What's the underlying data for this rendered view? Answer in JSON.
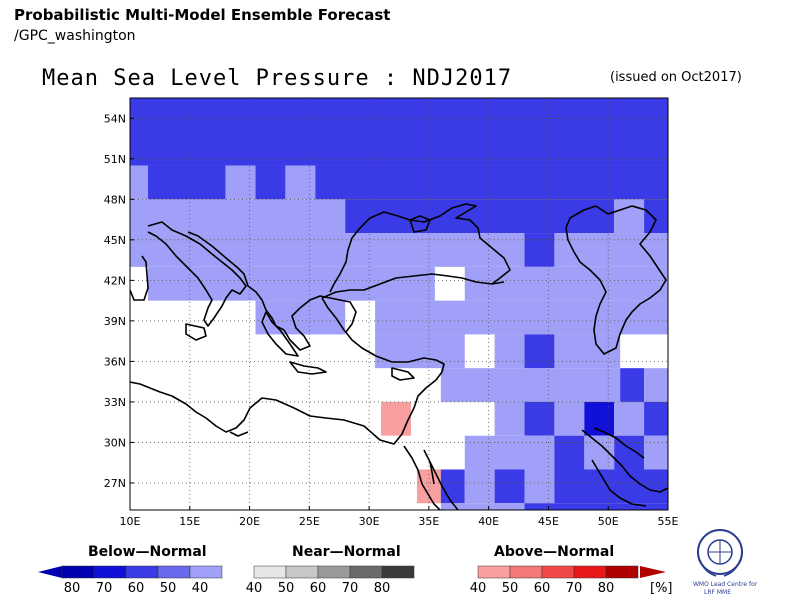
{
  "header": {
    "title": "Probabilistic Multi-Model Ensemble Forecast",
    "subtitle": "/GPC_washington"
  },
  "map": {
    "title": "Mean Sea Level Pressure : NDJ2017",
    "issued": "(issued on Oct2017)",
    "lon_min": 10,
    "lon_max": 55,
    "lat_min": 25,
    "lat_max": 55.5,
    "lon_ticks": [
      "10E",
      "15E",
      "20E",
      "25E",
      "30E",
      "35E",
      "40E",
      "45E",
      "50E",
      "55E"
    ],
    "lat_ticks": [
      "54N",
      "51N",
      "48N",
      "45N",
      "42N",
      "39N",
      "36N",
      "33N",
      "30N",
      "27N"
    ],
    "grid_cell_deg": 2.5,
    "colors": {
      "blue_light": "#a0a0f8",
      "blue_mid": "#3a3ae6",
      "blue_dark": "#1010d8",
      "red_light": "#f8a0a0",
      "red_mid": "#f47878"
    }
  },
  "legend": {
    "below": {
      "title": "Below—Normal",
      "labels": [
        "80",
        "70",
        "60",
        "50",
        "40"
      ],
      "colors": [
        "#0000b0",
        "#1010d8",
        "#3a3ae6",
        "#6a6aee",
        "#a0a0f8"
      ]
    },
    "near": {
      "title": "Near—Normal",
      "labels": [
        "40",
        "50",
        "60",
        "70",
        "80"
      ],
      "colors": [
        "#e6e6e6",
        "#c8c8c8",
        "#9a9a9a",
        "#6a6a6a",
        "#3a3a3a"
      ]
    },
    "above": {
      "title": "Above—Normal",
      "labels": [
        "40",
        "50",
        "60",
        "70",
        "80"
      ],
      "colors": [
        "#f8a0a0",
        "#f47878",
        "#f04848",
        "#e81818",
        "#b00000"
      ],
      "unit": "[%]"
    }
  },
  "logo": {
    "line1": "WMO Lead Centre for",
    "line2": "LRF MME"
  }
}
